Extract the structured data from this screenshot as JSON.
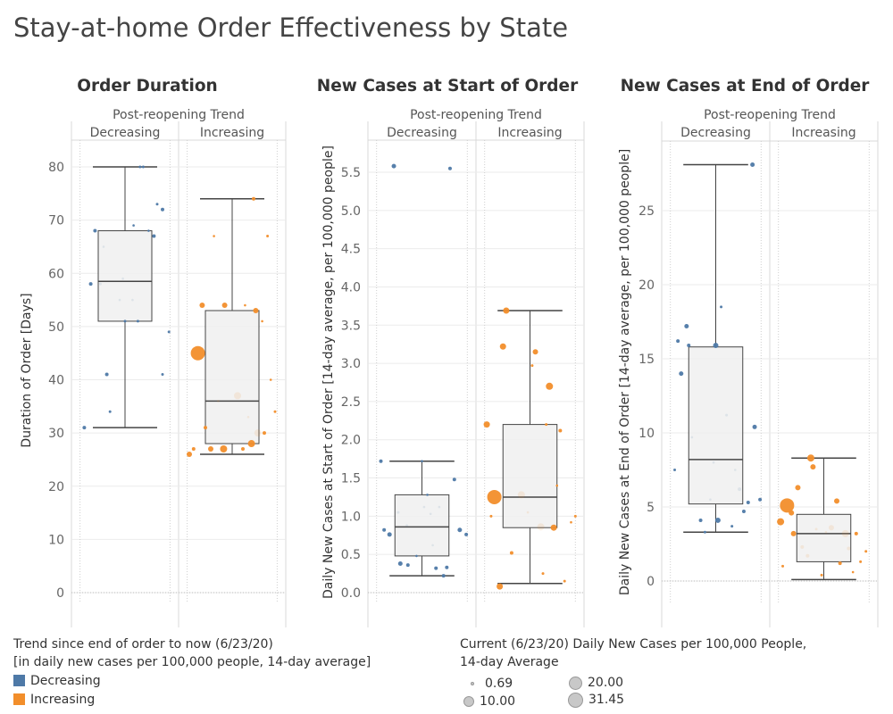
{
  "title": "Stay-at-home Order Effectiveness by State",
  "colors": {
    "decreasing": "#4e79a7",
    "increasing": "#f28e2b",
    "box_fill": "#f0f0f0",
    "grid": "#ebebeb"
  },
  "legend_color": {
    "title_line1": "Trend since end of order to now (6/23/20)",
    "title_line2": "[in daily new cases per 100,000 people, 14-day average]",
    "items": [
      "Decreasing",
      "Increasing"
    ]
  },
  "legend_size": {
    "title_line1": "Current (6/23/20) Daily New Cases per 100,000 People,",
    "title_line2": "14-day Average",
    "items": [
      "0.69",
      "20.00",
      "10.00",
      "31.45"
    ]
  },
  "chart_data": [
    {
      "type": "box",
      "title": "Order Duration",
      "facet_title": "Post-reopening Trend",
      "categories": [
        "Decreasing",
        "Increasing"
      ],
      "ylabel": "Duration of Order [Days]",
      "ylim": [
        -2,
        88
      ],
      "ticks": [
        0,
        10,
        20,
        30,
        40,
        50,
        60,
        70,
        80
      ],
      "tick_labels": [
        "0",
        "10",
        "20",
        "30",
        "40",
        "50",
        "60",
        "70",
        "80"
      ],
      "boxes": [
        {
          "min": 31,
          "q1": 51,
          "median": 58.5,
          "q3": 68,
          "max": 80
        },
        {
          "min": 26,
          "q1": 28,
          "median": 36,
          "q3": 53,
          "max": 74
        }
      ],
      "points": [
        {
          "c": 0,
          "j": 0.12,
          "y": 31,
          "s": 2
        },
        {
          "c": 0,
          "j": 0.18,
          "y": 58,
          "s": 2
        },
        {
          "c": 0,
          "j": 0.22,
          "y": 68,
          "s": 2
        },
        {
          "c": 0,
          "j": 0.27,
          "y": 58,
          "s": 1.5
        },
        {
          "c": 0,
          "j": 0.3,
          "y": 65,
          "s": 1
        },
        {
          "c": 0,
          "j": 0.33,
          "y": 41,
          "s": 2
        },
        {
          "c": 0,
          "j": 0.36,
          "y": 34,
          "s": 1.5
        },
        {
          "c": 0,
          "j": 0.45,
          "y": 55,
          "s": 1
        },
        {
          "c": 0,
          "j": 0.48,
          "y": 59,
          "s": 1
        },
        {
          "c": 0,
          "j": 0.5,
          "y": 51,
          "s": 1.5
        },
        {
          "c": 0,
          "j": 0.57,
          "y": 55,
          "s": 1
        },
        {
          "c": 0,
          "j": 0.58,
          "y": 69,
          "s": 1
        },
        {
          "c": 0,
          "j": 0.62,
          "y": 51,
          "s": 1.5
        },
        {
          "c": 0,
          "j": 0.64,
          "y": 80,
          "s": 1.5
        },
        {
          "c": 0,
          "j": 0.67,
          "y": 80,
          "s": 1.5
        },
        {
          "c": 0,
          "j": 0.72,
          "y": 68,
          "s": 1
        },
        {
          "c": 0,
          "j": 0.77,
          "y": 67,
          "s": 2
        },
        {
          "c": 0,
          "j": 0.8,
          "y": 73,
          "s": 1.5
        },
        {
          "c": 0,
          "j": 0.85,
          "y": 72,
          "s": 2
        },
        {
          "c": 0,
          "j": 0.85,
          "y": 41,
          "s": 1.5
        },
        {
          "c": 0,
          "j": 0.91,
          "y": 49,
          "s": 1.5
        },
        {
          "c": 1,
          "j": 0.1,
          "y": 26,
          "s": 3
        },
        {
          "c": 1,
          "j": 0.14,
          "y": 27,
          "s": 2
        },
        {
          "c": 1,
          "j": 0.18,
          "y": 45,
          "s": 8
        },
        {
          "c": 1,
          "j": 0.22,
          "y": 54,
          "s": 3
        },
        {
          "c": 1,
          "j": 0.25,
          "y": 31,
          "s": 2
        },
        {
          "c": 1,
          "j": 0.3,
          "y": 27,
          "s": 3
        },
        {
          "c": 1,
          "j": 0.33,
          "y": 67,
          "s": 0.5
        },
        {
          "c": 1,
          "j": 0.37,
          "y": 36,
          "s": 1
        },
        {
          "c": 1,
          "j": 0.42,
          "y": 27,
          "s": 4
        },
        {
          "c": 1,
          "j": 0.43,
          "y": 54,
          "s": 3
        },
        {
          "c": 1,
          "j": 0.55,
          "y": 37,
          "s": 4
        },
        {
          "c": 1,
          "j": 0.6,
          "y": 27,
          "s": 2
        },
        {
          "c": 1,
          "j": 0.62,
          "y": 54,
          "s": 1
        },
        {
          "c": 1,
          "j": 0.65,
          "y": 33,
          "s": 1
        },
        {
          "c": 1,
          "j": 0.68,
          "y": 28,
          "s": 4
        },
        {
          "c": 1,
          "j": 0.7,
          "y": 74,
          "s": 2
        },
        {
          "c": 1,
          "j": 0.72,
          "y": 53,
          "s": 3
        },
        {
          "c": 1,
          "j": 0.74,
          "y": 30,
          "s": 4
        },
        {
          "c": 1,
          "j": 0.78,
          "y": 51,
          "s": 0.5
        },
        {
          "c": 1,
          "j": 0.8,
          "y": 30,
          "s": 2
        },
        {
          "c": 1,
          "j": 0.83,
          "y": 67,
          "s": 1.5
        },
        {
          "c": 1,
          "j": 0.86,
          "y": 40,
          "s": 1
        },
        {
          "c": 1,
          "j": 0.9,
          "y": 34,
          "s": 1.5
        }
      ]
    },
    {
      "type": "box",
      "title": "New Cases at Start of Order",
      "facet_title": "Post-reopening Trend",
      "categories": [
        "Decreasing",
        "Increasing"
      ],
      "ylabel": "Daily New Cases at Start of Order [14-day average, per 100,000 people]",
      "ylim": [
        -0.15,
        5.9
      ],
      "ticks": [
        0,
        0.5,
        1,
        1.5,
        2,
        2.5,
        3,
        3.5,
        4,
        4.5,
        5,
        5.5
      ],
      "tick_labels": [
        "0.0",
        "0.5",
        "1.0",
        "1.5",
        "2.0",
        "2.5",
        "3.0",
        "3.5",
        "4.0",
        "4.5",
        "5.0",
        "5.5"
      ],
      "boxes": [
        {
          "min": 0.22,
          "q1": 0.48,
          "median": 0.86,
          "q3": 1.28,
          "max": 1.72
        },
        {
          "min": 0.12,
          "q1": 0.85,
          "median": 1.25,
          "q3": 2.2,
          "max": 3.69
        }
      ],
      "points": [
        {
          "c": 0,
          "j": 0.12,
          "y": 1.72,
          "s": 2
        },
        {
          "c": 0,
          "j": 0.15,
          "y": 0.82,
          "s": 2
        },
        {
          "c": 0,
          "j": 0.2,
          "y": 0.76,
          "s": 2.5
        },
        {
          "c": 0,
          "j": 0.24,
          "y": 5.58,
          "s": 2.5
        },
        {
          "c": 0,
          "j": 0.28,
          "y": 1.05,
          "s": 1.5
        },
        {
          "c": 0,
          "j": 0.3,
          "y": 0.38,
          "s": 2.5
        },
        {
          "c": 0,
          "j": 0.37,
          "y": 0.36,
          "s": 2
        },
        {
          "c": 0,
          "j": 0.36,
          "y": 0.88,
          "s": 1
        },
        {
          "c": 0,
          "j": 0.45,
          "y": 0.48,
          "s": 1
        },
        {
          "c": 0,
          "j": 0.5,
          "y": 1.72,
          "s": 1
        },
        {
          "c": 0,
          "j": 0.52,
          "y": 1.12,
          "s": 1
        },
        {
          "c": 0,
          "j": 0.55,
          "y": 1.28,
          "s": 1
        },
        {
          "c": 0,
          "j": 0.58,
          "y": 1.03,
          "s": 1
        },
        {
          "c": 0,
          "j": 0.6,
          "y": 0.62,
          "s": 1
        },
        {
          "c": 0,
          "j": 0.63,
          "y": 0.32,
          "s": 2
        },
        {
          "c": 0,
          "j": 0.66,
          "y": 1.12,
          "s": 1
        },
        {
          "c": 0,
          "j": 0.7,
          "y": 0.22,
          "s": 2
        },
        {
          "c": 0,
          "j": 0.73,
          "y": 0.33,
          "s": 2
        },
        {
          "c": 0,
          "j": 0.76,
          "y": 5.55,
          "s": 2
        },
        {
          "c": 0,
          "j": 0.8,
          "y": 1.48,
          "s": 2
        },
        {
          "c": 0,
          "j": 0.85,
          "y": 0.82,
          "s": 2.5
        },
        {
          "c": 0,
          "j": 0.91,
          "y": 0.76,
          "s": 2
        },
        {
          "c": 1,
          "j": 0.1,
          "y": 2.2,
          "s": 3.5
        },
        {
          "c": 1,
          "j": 0.14,
          "y": 1.0,
          "s": 1.5
        },
        {
          "c": 1,
          "j": 0.17,
          "y": 1.25,
          "s": 8
        },
        {
          "c": 1,
          "j": 0.22,
          "y": 0.08,
          "s": 3.5
        },
        {
          "c": 1,
          "j": 0.25,
          "y": 3.22,
          "s": 3.5
        },
        {
          "c": 1,
          "j": 0.28,
          "y": 3.69,
          "s": 3.5
        },
        {
          "c": 1,
          "j": 0.33,
          "y": 0.52,
          "s": 2
        },
        {
          "c": 1,
          "j": 0.42,
          "y": 1.28,
          "s": 4
        },
        {
          "c": 1,
          "j": 0.48,
          "y": 1.05,
          "s": 0.5
        },
        {
          "c": 1,
          "j": 0.52,
          "y": 2.97,
          "s": 1.5
        },
        {
          "c": 1,
          "j": 0.55,
          "y": 3.15,
          "s": 3
        },
        {
          "c": 1,
          "j": 0.6,
          "y": 0.86,
          "s": 4
        },
        {
          "c": 1,
          "j": 0.62,
          "y": 0.25,
          "s": 1.5
        },
        {
          "c": 1,
          "j": 0.65,
          "y": 2.2,
          "s": 1.5
        },
        {
          "c": 1,
          "j": 0.68,
          "y": 2.7,
          "s": 4
        },
        {
          "c": 1,
          "j": 0.72,
          "y": 0.85,
          "s": 3.5
        },
        {
          "c": 1,
          "j": 0.75,
          "y": 1.4,
          "s": 0.5
        },
        {
          "c": 1,
          "j": 0.78,
          "y": 2.12,
          "s": 2
        },
        {
          "c": 1,
          "j": 0.82,
          "y": 0.15,
          "s": 1.5
        },
        {
          "c": 1,
          "j": 0.88,
          "y": 0.92,
          "s": 1
        },
        {
          "c": 1,
          "j": 0.92,
          "y": 1.0,
          "s": 1.5
        }
      ]
    },
    {
      "type": "box",
      "title": "New Cases at End of Order",
      "facet_title": "Post-reopening Trend",
      "categories": [
        "Decreasing",
        "Increasing"
      ],
      "ylabel": "Daily New Cases at End of Order [14-day average, per 100,000 people]",
      "ylim": [
        -0.8,
        29.5
      ],
      "ticks": [
        0,
        5,
        10,
        15,
        20,
        25
      ],
      "tick_labels": [
        "0",
        "5",
        "10",
        "15",
        "20",
        "25"
      ],
      "boxes": [
        {
          "min": 3.3,
          "q1": 5.2,
          "median": 8.2,
          "q3": 15.8,
          "max": 28.1
        },
        {
          "min": 0.1,
          "q1": 1.3,
          "median": 3.2,
          "q3": 4.5,
          "max": 8.3
        }
      ],
      "points": [
        {
          "c": 0,
          "j": 0.12,
          "y": 7.5,
          "s": 1.5
        },
        {
          "c": 0,
          "j": 0.15,
          "y": 16.2,
          "s": 2
        },
        {
          "c": 0,
          "j": 0.18,
          "y": 14.0,
          "s": 2.5
        },
        {
          "c": 0,
          "j": 0.23,
          "y": 17.2,
          "s": 2.5
        },
        {
          "c": 0,
          "j": 0.25,
          "y": 15.9,
          "s": 2
        },
        {
          "c": 0,
          "j": 0.28,
          "y": 9.7,
          "s": 1
        },
        {
          "c": 0,
          "j": 0.36,
          "y": 4.1,
          "s": 2
        },
        {
          "c": 0,
          "j": 0.4,
          "y": 3.3,
          "s": 1.5
        },
        {
          "c": 0,
          "j": 0.45,
          "y": 5.5,
          "s": 1
        },
        {
          "c": 0,
          "j": 0.48,
          "y": 8.0,
          "s": 1
        },
        {
          "c": 0,
          "j": 0.5,
          "y": 15.9,
          "s": 3
        },
        {
          "c": 0,
          "j": 0.52,
          "y": 4.1,
          "s": 3
        },
        {
          "c": 0,
          "j": 0.55,
          "y": 18.5,
          "s": 1.5
        },
        {
          "c": 0,
          "j": 0.6,
          "y": 11.2,
          "s": 1.5
        },
        {
          "c": 0,
          "j": 0.65,
          "y": 3.7,
          "s": 1.5
        },
        {
          "c": 0,
          "j": 0.68,
          "y": 7.5,
          "s": 1
        },
        {
          "c": 0,
          "j": 0.72,
          "y": 6.2,
          "s": 2
        },
        {
          "c": 0,
          "j": 0.76,
          "y": 4.7,
          "s": 2
        },
        {
          "c": 0,
          "j": 0.8,
          "y": 5.3,
          "s": 2
        },
        {
          "c": 0,
          "j": 0.84,
          "y": 28.1,
          "s": 2.5
        },
        {
          "c": 0,
          "j": 0.86,
          "y": 10.4,
          "s": 2.5
        },
        {
          "c": 0,
          "j": 0.91,
          "y": 5.5,
          "s": 2
        },
        {
          "c": 1,
          "j": 0.1,
          "y": 4.0,
          "s": 4
        },
        {
          "c": 1,
          "j": 0.12,
          "y": 1.0,
          "s": 1.5
        },
        {
          "c": 1,
          "j": 0.16,
          "y": 5.1,
          "s": 8
        },
        {
          "c": 1,
          "j": 0.2,
          "y": 4.6,
          "s": 3
        },
        {
          "c": 1,
          "j": 0.22,
          "y": 3.2,
          "s": 3
        },
        {
          "c": 1,
          "j": 0.26,
          "y": 6.3,
          "s": 3
        },
        {
          "c": 1,
          "j": 0.3,
          "y": 2.3,
          "s": 2
        },
        {
          "c": 1,
          "j": 0.35,
          "y": 1.7,
          "s": 2
        },
        {
          "c": 1,
          "j": 0.38,
          "y": 8.3,
          "s": 4
        },
        {
          "c": 1,
          "j": 0.4,
          "y": 7.7,
          "s": 3
        },
        {
          "c": 1,
          "j": 0.43,
          "y": 3.5,
          "s": 1.5
        },
        {
          "c": 1,
          "j": 0.48,
          "y": 0.4,
          "s": 1.5
        },
        {
          "c": 1,
          "j": 0.52,
          "y": 3.3,
          "s": 1
        },
        {
          "c": 1,
          "j": 0.57,
          "y": 3.6,
          "s": 3
        },
        {
          "c": 1,
          "j": 0.62,
          "y": 5.4,
          "s": 3
        },
        {
          "c": 1,
          "j": 0.65,
          "y": 1.2,
          "s": 2
        },
        {
          "c": 1,
          "j": 0.7,
          "y": 3.2,
          "s": 4
        },
        {
          "c": 1,
          "j": 0.73,
          "y": 2.2,
          "s": 2
        },
        {
          "c": 1,
          "j": 0.77,
          "y": 0.6,
          "s": 1
        },
        {
          "c": 1,
          "j": 0.8,
          "y": 3.2,
          "s": 2
        },
        {
          "c": 1,
          "j": 0.84,
          "y": 1.3,
          "s": 1.5
        },
        {
          "c": 1,
          "j": 0.89,
          "y": 2.0,
          "s": 1.5
        }
      ]
    }
  ]
}
